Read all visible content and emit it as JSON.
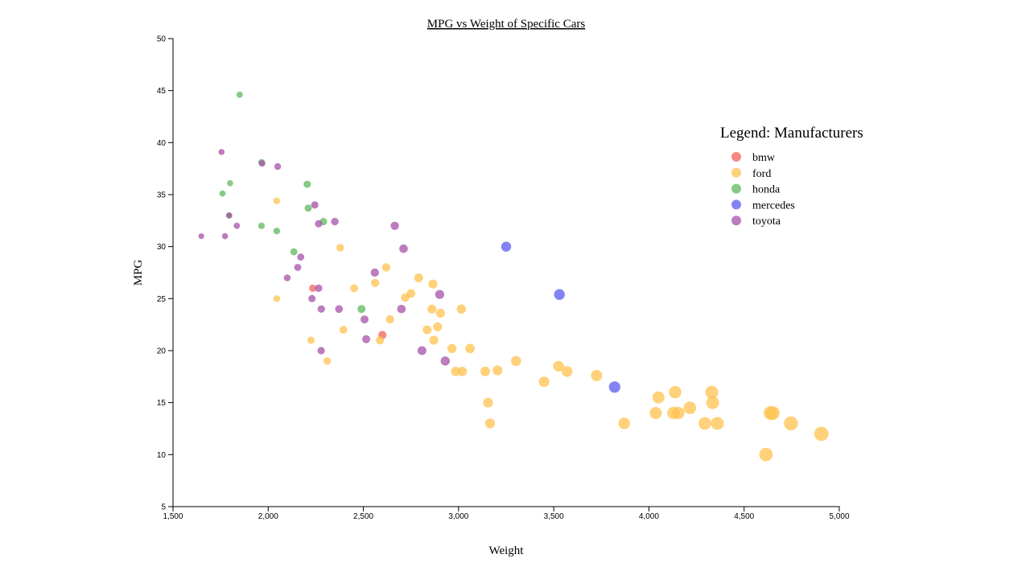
{
  "chart_data": {
    "type": "scatter",
    "title": "MPG vs Weight of Specific Cars",
    "xlabel": "Weight",
    "ylabel": "MPG",
    "xlim": [
      1500,
      5000
    ],
    "ylim": [
      5,
      50
    ],
    "x_ticks": [
      1500,
      2000,
      2500,
      3000,
      3500,
      4000,
      4500,
      5000
    ],
    "x_tick_labels": [
      "1,500",
      "2,000",
      "2,500",
      "3,000",
      "3,500",
      "4,000",
      "4,500",
      "5,000"
    ],
    "y_ticks": [
      5,
      10,
      15,
      20,
      25,
      30,
      35,
      40,
      45,
      50
    ],
    "y_tick_labels": [
      "5",
      "10",
      "15",
      "20",
      "25",
      "30",
      "35",
      "40",
      "45",
      "50"
    ],
    "grid": false,
    "point_size_encodes": "weight",
    "legend_position": "right",
    "legend_title": "Legend: Manufacturers",
    "series": [
      {
        "name": "bmw",
        "color": "#f0605a",
        "points": [
          [
            2234,
            26
          ],
          [
            2600,
            21.5
          ]
        ]
      },
      {
        "name": "ford",
        "color": "#ffc14d",
        "points": [
          [
            2045,
            34.4
          ],
          [
            2045,
            25
          ],
          [
            2225,
            21
          ],
          [
            2310,
            19
          ],
          [
            2379,
            29.9
          ],
          [
            2395,
            22
          ],
          [
            2452,
            26
          ],
          [
            2562,
            26.5
          ],
          [
            2587,
            21
          ],
          [
            2620,
            28
          ],
          [
            2640,
            23
          ],
          [
            2720,
            25.1
          ],
          [
            2750,
            25.5
          ],
          [
            2790,
            27
          ],
          [
            2835,
            22
          ],
          [
            2860,
            24
          ],
          [
            2865,
            26.4
          ],
          [
            2870,
            21
          ],
          [
            2890,
            22.3
          ],
          [
            2905,
            23.6
          ],
          [
            2965,
            20.2
          ],
          [
            2985,
            18
          ],
          [
            3015,
            24
          ],
          [
            3020,
            18
          ],
          [
            3060,
            20.2
          ],
          [
            3140,
            18
          ],
          [
            3155,
            15
          ],
          [
            3165,
            13
          ],
          [
            3205,
            18.1
          ],
          [
            3302,
            19
          ],
          [
            3449,
            17
          ],
          [
            3525,
            18.5
          ],
          [
            3570,
            18
          ],
          [
            3725,
            17.6
          ],
          [
            3870,
            13
          ],
          [
            4036,
            14
          ],
          [
            4050,
            15.5
          ],
          [
            4129,
            14
          ],
          [
            4138,
            16
          ],
          [
            4154,
            14
          ],
          [
            4215,
            14.5
          ],
          [
            4294,
            13
          ],
          [
            4330,
            16
          ],
          [
            4335,
            15
          ],
          [
            4360,
            13
          ],
          [
            4615,
            10
          ],
          [
            4638,
            14
          ],
          [
            4651,
            14
          ],
          [
            4746,
            13
          ],
          [
            4906,
            12
          ]
        ]
      },
      {
        "name": "honda",
        "color": "#5cb85c",
        "points": [
          [
            1760,
            35.1
          ],
          [
            1795,
            33
          ],
          [
            1800,
            36.1
          ],
          [
            1850,
            44.6
          ],
          [
            1965,
            32
          ],
          [
            1965,
            38.1
          ],
          [
            2045,
            31.5
          ],
          [
            2135,
            29.5
          ],
          [
            2205,
            36
          ],
          [
            2210,
            33.7
          ],
          [
            2290,
            32.4
          ],
          [
            2490,
            24
          ]
        ]
      },
      {
        "name": "mercedes",
        "color": "#5a5af0",
        "points": [
          [
            3250,
            30
          ],
          [
            3530,
            25.4
          ],
          [
            3820,
            16.5
          ]
        ]
      },
      {
        "name": "toyota",
        "color": "#a550a8",
        "points": [
          [
            1649,
            31
          ],
          [
            1755,
            39.1
          ],
          [
            1773,
            31
          ],
          [
            1795,
            33
          ],
          [
            1835,
            32
          ],
          [
            1968,
            38
          ],
          [
            2050,
            37.7
          ],
          [
            2100,
            27
          ],
          [
            2155,
            28
          ],
          [
            2171,
            29
          ],
          [
            2230,
            25
          ],
          [
            2245,
            34
          ],
          [
            2265,
            32.2
          ],
          [
            2265,
            26
          ],
          [
            2278,
            20
          ],
          [
            2279,
            24
          ],
          [
            2350,
            32.4
          ],
          [
            2372,
            24
          ],
          [
            2506,
            23
          ],
          [
            2515,
            21.1
          ],
          [
            2560,
            27.5
          ],
          [
            2665,
            32
          ],
          [
            2700,
            24
          ],
          [
            2711,
            29.8
          ],
          [
            2808,
            20
          ],
          [
            2901,
            25.4
          ],
          [
            2930,
            19
          ]
        ]
      }
    ]
  }
}
